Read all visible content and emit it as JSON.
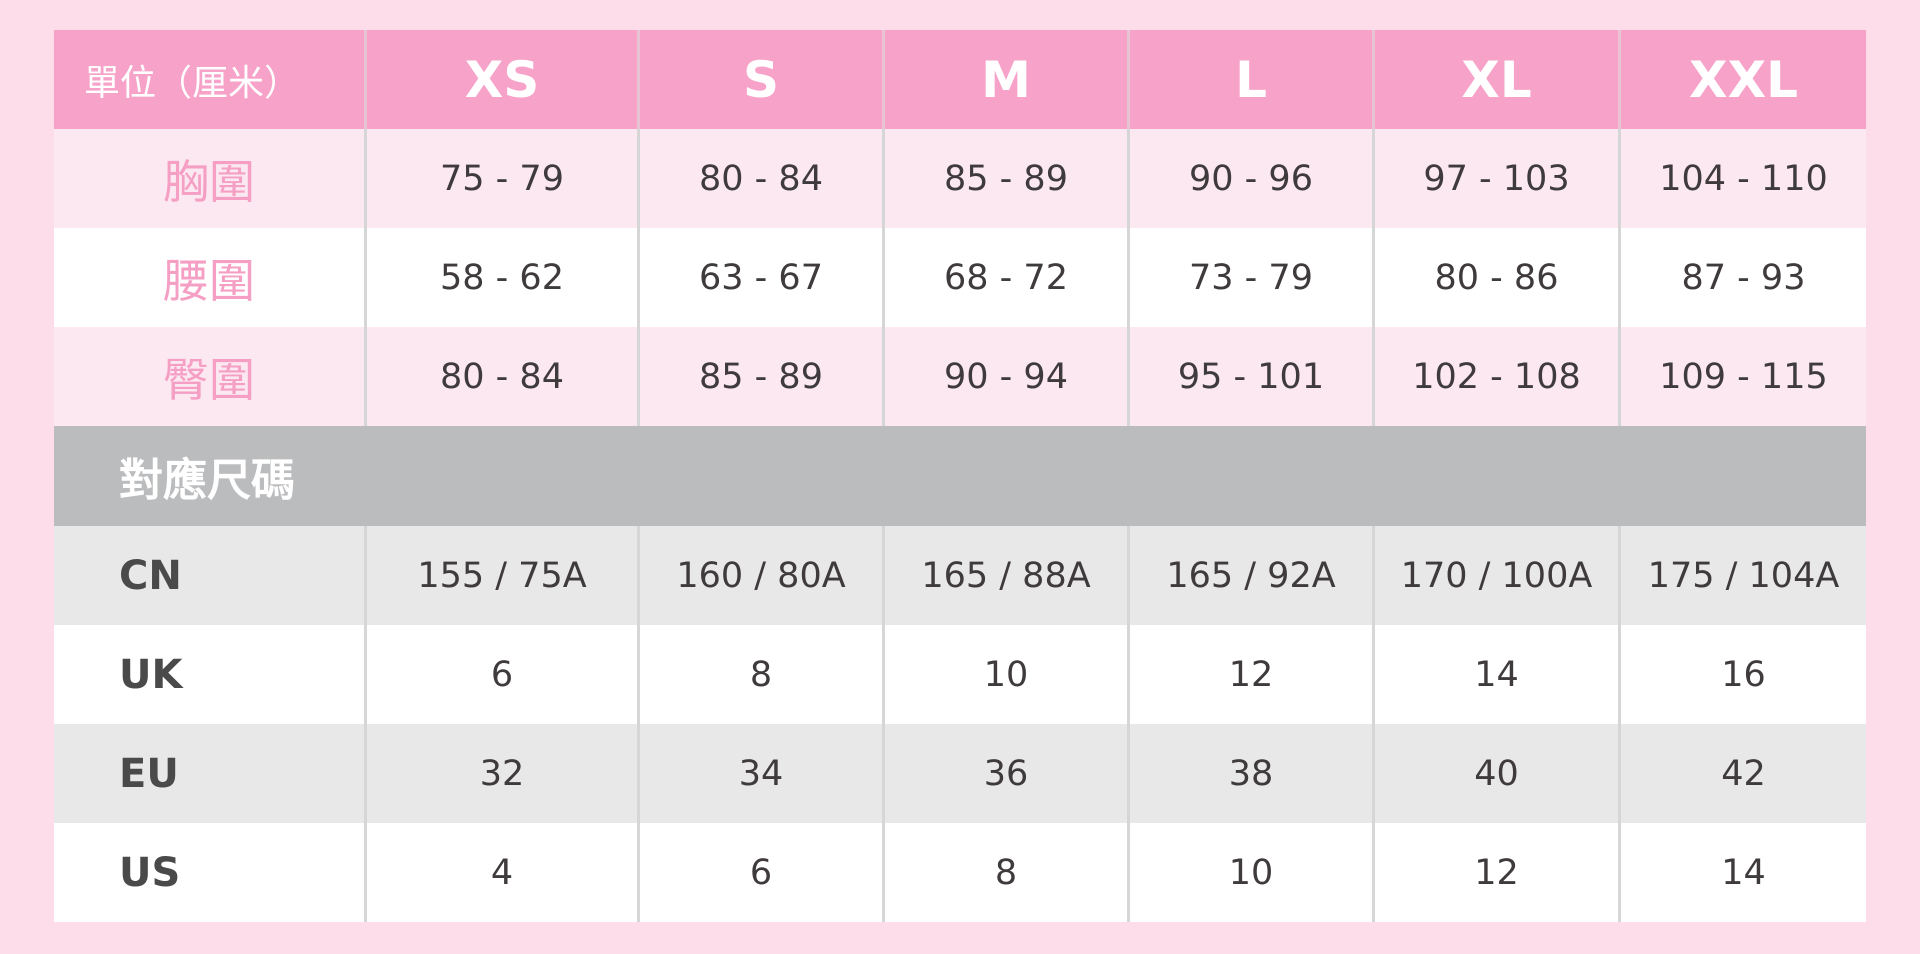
{
  "header": {
    "unit_label": "單位（厘米）",
    "sizes": [
      "XS",
      "S",
      "M",
      "L",
      "XL",
      "XXL"
    ]
  },
  "measurements": [
    {
      "label": "胸圍",
      "values": [
        "75 - 79",
        "80 - 84",
        "85 - 89",
        "90 - 96",
        "97 - 103",
        "104 - 110"
      ]
    },
    {
      "label": "腰圍",
      "values": [
        "58 - 62",
        "63 - 67",
        "68 - 72",
        "73 - 79",
        "80 - 86",
        "87 - 93"
      ]
    },
    {
      "label": "臀圍",
      "values": [
        "80 - 84",
        "85 - 89",
        "90 - 94",
        "95 - 101",
        "102 - 108",
        "109 - 115"
      ]
    }
  ],
  "section_title": "對應尺碼",
  "regions": [
    {
      "label": "CN",
      "values": [
        "155 / 75A",
        "160 / 80A",
        "165 / 88A",
        "165 / 92A",
        "170 / 100A",
        "175 / 104A"
      ]
    },
    {
      "label": "UK",
      "values": [
        "6",
        "8",
        "10",
        "12",
        "14",
        "16"
      ]
    },
    {
      "label": "EU",
      "values": [
        "32",
        "34",
        "36",
        "38",
        "40",
        "42"
      ]
    },
    {
      "label": "US",
      "values": [
        "4",
        "6",
        "8",
        "10",
        "12",
        "14"
      ]
    }
  ],
  "colors": {
    "page_bg": "#fcdde9",
    "header_pink": "#f7a2c8",
    "label_pink": "#f59fc4",
    "section_grey": "#bbbcbe"
  }
}
